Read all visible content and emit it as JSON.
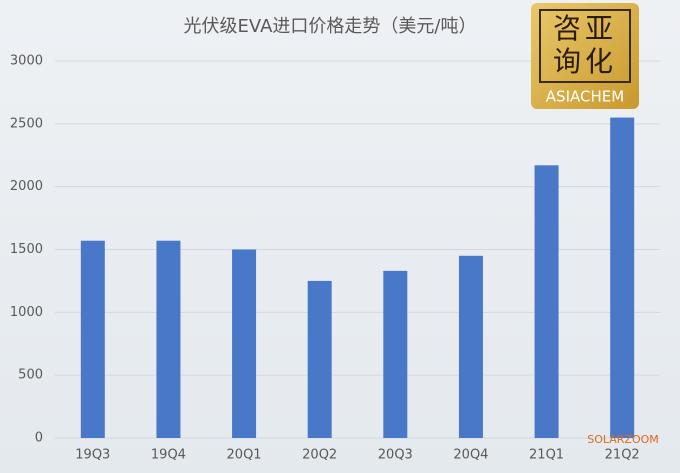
{
  "chart_data": {
    "type": "bar",
    "title": "光伏级EVA进口价格走势（美元/吨）",
    "categories": [
      "19Q3",
      "19Q4",
      "20Q1",
      "20Q2",
      "20Q3",
      "20Q4",
      "21Q1",
      "21Q2"
    ],
    "values": [
      1570,
      1570,
      1500,
      1250,
      1330,
      1450,
      2170,
      2550
    ],
    "color": "#4a78c9",
    "ylim": [
      0,
      3000
    ],
    "yticks": [
      0,
      500,
      1000,
      1500,
      2000,
      2500,
      3000
    ],
    "grid": true
  },
  "logo": {
    "lines": [
      "咨亚",
      "询化"
    ],
    "name": "ASIACHEM"
  },
  "watermark": "SOLARZOOM"
}
